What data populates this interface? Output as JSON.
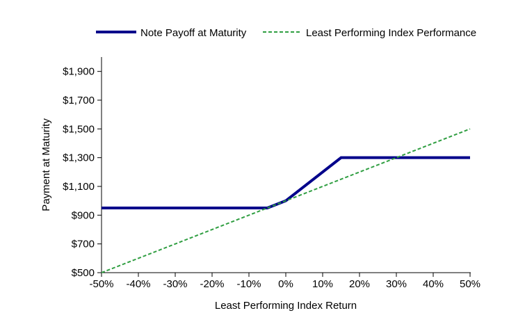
{
  "chart_data": {
    "type": "line",
    "title": "",
    "xlabel": "Least Performing Index Return",
    "ylabel": "Payment at Maturity",
    "xlim": [
      -50,
      50
    ],
    "ylim": [
      500,
      2000
    ],
    "grid": false,
    "legend_position": "top",
    "x_ticks": [
      {
        "label": "-50%",
        "value": -50
      },
      {
        "label": "-40%",
        "value": -40
      },
      {
        "label": "-30%",
        "value": -30
      },
      {
        "label": "-20%",
        "value": -20
      },
      {
        "label": "-10%",
        "value": -10
      },
      {
        "label": "0%",
        "value": 0
      },
      {
        "label": "10%",
        "value": 10
      },
      {
        "label": "20%",
        "value": 20
      },
      {
        "label": "30%",
        "value": 30
      },
      {
        "label": "40%",
        "value": 40
      },
      {
        "label": "50%",
        "value": 50
      }
    ],
    "y_ticks": [
      {
        "label": "$500",
        "value": 500
      },
      {
        "label": "$700",
        "value": 700
      },
      {
        "label": "$900",
        "value": 900
      },
      {
        "label": "$1,100",
        "value": 1100
      },
      {
        "label": "$1,300",
        "value": 1300
      },
      {
        "label": "$1,500",
        "value": 1500
      },
      {
        "label": "$1,700",
        "value": 1700
      },
      {
        "label": "$1,900",
        "value": 1900
      }
    ],
    "series": [
      {
        "name": "Note Payoff at Maturity",
        "color": "#00008B",
        "style": "solid",
        "width": 4,
        "points": [
          [
            -50,
            950
          ],
          [
            -5,
            950
          ],
          [
            0,
            1000
          ],
          [
            15,
            1300
          ],
          [
            50,
            1300
          ]
        ]
      },
      {
        "name": "Least Performing Index Performance",
        "color": "#2F9E41",
        "style": "dashed",
        "dash": "5,3",
        "width": 2,
        "points": [
          [
            -50,
            500
          ],
          [
            50,
            1500
          ]
        ]
      }
    ]
  }
}
